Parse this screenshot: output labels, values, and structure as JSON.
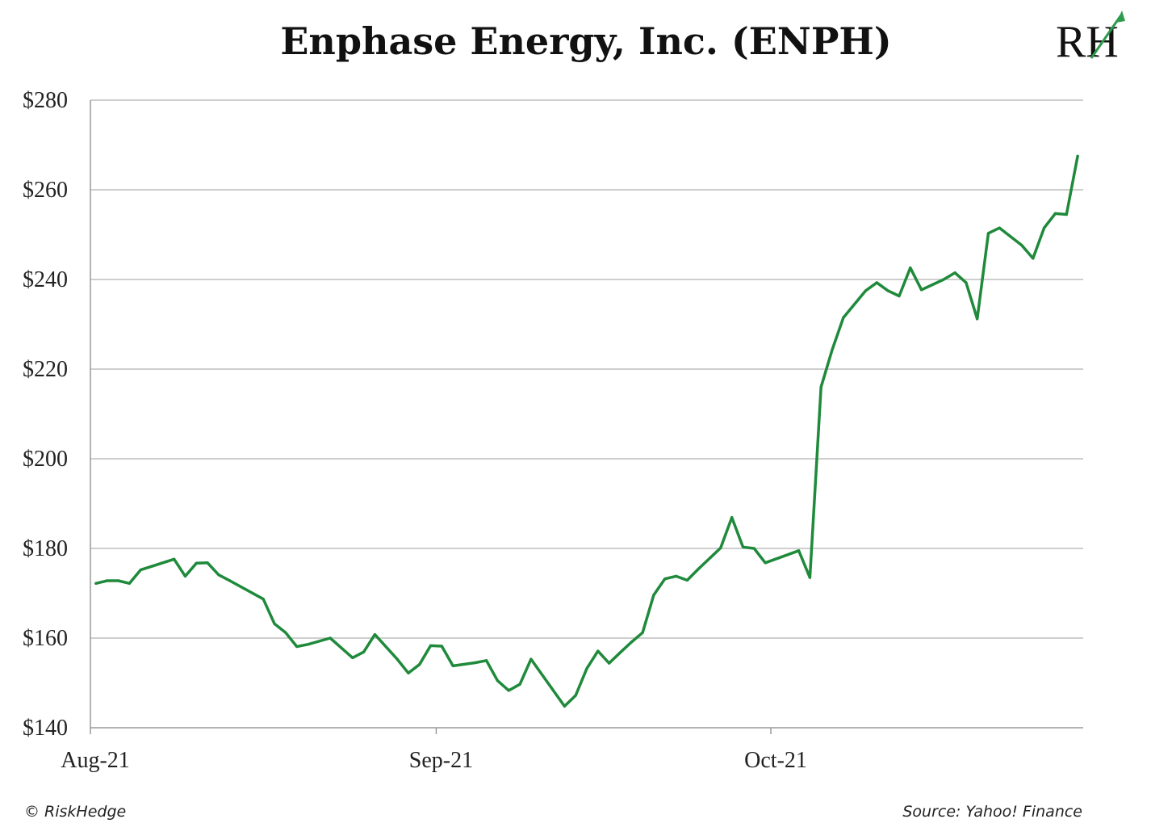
{
  "chart_data": {
    "type": "line",
    "title": "Enphase Energy, Inc. (ENPH)",
    "xlabel": "",
    "ylabel": "",
    "ylim": [
      140,
      280
    ],
    "y_ticks": [
      140,
      160,
      180,
      200,
      220,
      240,
      260,
      280
    ],
    "y_tick_labels": [
      "$140",
      "$160",
      "$180",
      "$200",
      "$220",
      "$240",
      "$260",
      "$280"
    ],
    "x_ticks": [
      0,
      31,
      61
    ],
    "x_tick_labels": [
      "Aug-21",
      "Sep-21",
      "Oct-21"
    ],
    "xlim": [
      0,
      89
    ],
    "grid": true,
    "legend": "none",
    "series": [
      {
        "color": "#1f8a3b",
        "x": [
          0.5,
          1.5,
          2.5,
          3.5,
          4.5,
          5.5,
          7.5,
          8.5,
          9.5,
          10.5,
          11.5,
          12.5,
          15.5,
          16.5,
          17.5,
          18.5,
          19.5,
          21.5,
          22.5,
          23.5,
          24.5,
          25.5,
          27.5,
          28.5,
          29.5,
          30.5,
          31.5,
          32.5,
          34.5,
          35.5,
          36.5,
          37.5,
          38.5,
          39.5,
          41.5,
          42.5,
          43.5,
          44.5,
          45.5,
          46.5,
          47.5,
          48.5,
          49.5,
          50.5,
          51.5,
          52.5,
          53.5,
          54.5,
          56.5,
          57.5,
          58.5,
          59.5,
          60.5,
          62.5,
          63.5,
          64.5,
          65.5,
          66.5,
          67.5,
          69.5,
          70.5,
          71.5,
          72.5,
          73.5,
          74.5,
          76.5,
          77.5,
          78.5,
          79.5,
          80.5,
          81.5,
          83.5,
          84.5,
          85.5,
          86.5,
          87.5,
          88.5
        ],
        "y": [
          172.2,
          172.8,
          172.8,
          172.2,
          175.2,
          176,
          177.6,
          173.8,
          176.7,
          176.8,
          174.1,
          172.8,
          168.7,
          163.2,
          161.2,
          158.1,
          158.6,
          160,
          157.8,
          155.6,
          156.9,
          160.8,
          155.3,
          152.2,
          154.1,
          158.3,
          158.2,
          153.8,
          154.5,
          155,
          150.5,
          148.3,
          149.7,
          155.3,
          148.3,
          144.8,
          147.2,
          153.2,
          157.1,
          154.4,
          156.8,
          159.1,
          161.2,
          169.6,
          173.2,
          173.8,
          172.9,
          175.4,
          180.1,
          186.9,
          180.3,
          180,
          176.8,
          178.6,
          179.5,
          173.5,
          216,
          224.3,
          231.5,
          237.5,
          239.3,
          237.5,
          236.3,
          242.6,
          237.7,
          240,
          241.5,
          239.3,
          231.2,
          250.3,
          251.5,
          247.6,
          244.7,
          251.5,
          254.7,
          254.5,
          267.5
        ]
      }
    ]
  },
  "footer": {
    "copyright": "© RiskHedge",
    "source": "Source: Yahoo! Finance"
  },
  "logo": {
    "text": "RH"
  }
}
